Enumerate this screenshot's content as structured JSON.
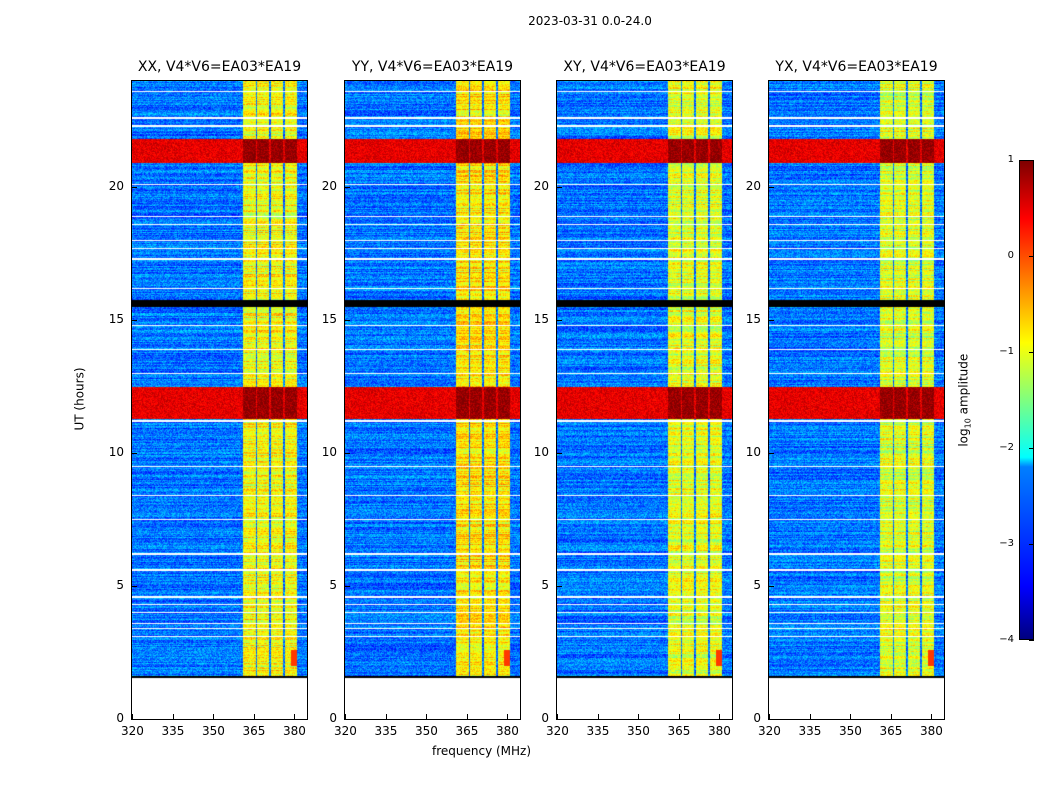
{
  "title": "2023-03-31 0.0-24.0",
  "chart_data": {
    "type": "heatmap",
    "title": "2023-03-31 0.0-24.0",
    "xlabel": "frequency (MHz)",
    "ylabel": "UT (hours)",
    "xlim": [
      320,
      384.8
    ],
    "ylim": [
      0,
      24
    ],
    "xticks": [
      "320",
      "335",
      "350",
      "365",
      "380"
    ],
    "xtick_values": [
      320,
      335,
      350,
      365,
      380
    ],
    "yticks": [
      "0",
      "5",
      "10",
      "15",
      "20"
    ],
    "ytick_values": [
      0,
      5,
      10,
      15,
      20
    ],
    "panels": [
      {
        "title": "XX, V4*V6=EA03*EA19",
        "rfi_level": 0.0
      },
      {
        "title": "YY, V4*V6=EA03*EA19",
        "rfi_level": 0.15
      },
      {
        "title": "XY, V4*V6=EA03*EA19",
        "rfi_level": -0.1
      },
      {
        "title": "YX, V4*V6=EA03*EA19",
        "rfi_level": -0.15
      }
    ],
    "data_start_hour": 1.6,
    "background_log_amplitude": -2.8,
    "rfi_channels_mhz": [
      [
        361,
        365.8
      ],
      [
        366.2,
        370.8
      ],
      [
        371.3,
        376
      ],
      [
        376.5,
        381
      ]
    ],
    "rfi_log_amplitude": -0.9,
    "high_amplitude_periods_hours": [
      [
        11.3,
        12.5
      ],
      [
        20.9,
        21.8
      ]
    ],
    "high_log_amplitude": 0.9,
    "zero_data_periods_hours": [
      [
        15.5,
        15.75
      ]
    ],
    "flagged_rows_hours": [
      3.1,
      3.4,
      3.6,
      4.0,
      4.3,
      4.6,
      5.6,
      6.2,
      7.5,
      8.4,
      9.5,
      11.2,
      13.0,
      13.9,
      14.8,
      16.2,
      17.3,
      17.7,
      18.0,
      18.6,
      18.9,
      20.1,
      22.3,
      22.6,
      23.6
    ],
    "colorbar": {
      "label": "log10 amplitude",
      "label_main": "log",
      "label_sub": "10",
      "label_rest": " amplitude",
      "range": [
        -4,
        1
      ],
      "ticks": [
        "1",
        "0",
        "−1",
        "−2",
        "−3",
        "−4"
      ],
      "tick_values": [
        1,
        0,
        -1,
        -2,
        -3,
        -4
      ],
      "colormap": "jet"
    }
  }
}
